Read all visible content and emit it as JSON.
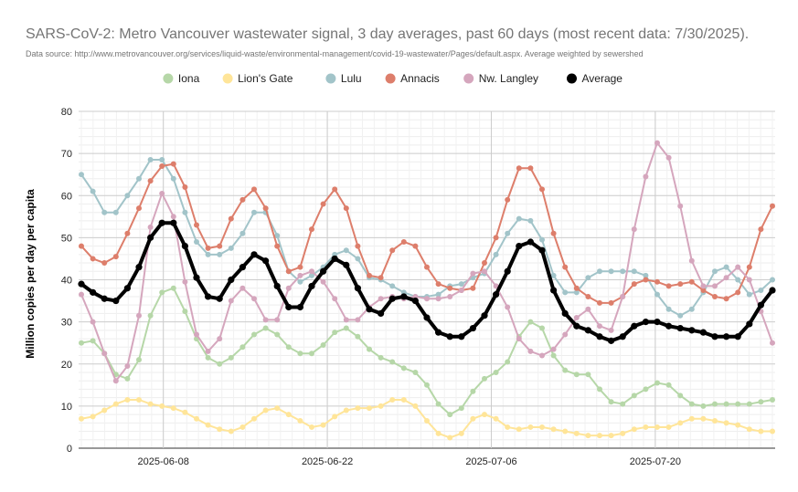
{
  "chart_data": {
    "type": "line",
    "title": "SARS-CoV-2: Metro Vancouver wastewater signal, 3 day averages, past 60 days (most recent data: 7/30/2025).",
    "subtitle": "Data source: http://www.metrovancouver.org/services/liquid-waste/environmental-management/covid-19-wastewater/Pages/default.aspx. Average weighted by sewershed",
    "ylabel": "Million copies per day per capita",
    "xlabel": "",
    "x_start": "2025-06-01",
    "x_end": "2025-07-30",
    "x_ticks": [
      "2025-06-08",
      "2025-06-22",
      "2025-07-06",
      "2025-07-20"
    ],
    "ylim": [
      0,
      80
    ],
    "y_ticks": [
      0,
      10,
      20,
      30,
      40,
      50,
      60,
      70,
      80
    ],
    "grid": true,
    "legend_position": "top",
    "series": [
      {
        "name": "Iona",
        "color": "#b6d7a8",
        "width": 2,
        "values": [
          25,
          25.5,
          22.5,
          17.5,
          16.5,
          21,
          31.5,
          37,
          38,
          32.5,
          26,
          21.5,
          20,
          21.5,
          24,
          27,
          28.5,
          27,
          24,
          22.5,
          22.5,
          24.5,
          27.5,
          28.5,
          26.5,
          23.5,
          21.5,
          20.5,
          19,
          18,
          15,
          10.5,
          8,
          9.5,
          13.5,
          16.5,
          18,
          20.5,
          26.5,
          30,
          28.5,
          22,
          18.5,
          17.5,
          17.5,
          14,
          11,
          10.5,
          12.5,
          14,
          15.5,
          15,
          12.5,
          10.5,
          10,
          10.5,
          10.5,
          10.5,
          10.5,
          11,
          11.5
        ]
      },
      {
        "name": "Lion's Gate",
        "color": "#ffe599",
        "width": 2,
        "values": [
          7,
          7.5,
          9,
          10.5,
          11.5,
          11.5,
          10.5,
          10,
          9.5,
          8.5,
          7,
          5.5,
          4.5,
          4,
          5,
          7,
          9,
          9.5,
          8,
          6.5,
          5,
          5.5,
          7.5,
          9,
          9.5,
          9.5,
          10,
          11.5,
          11.5,
          10,
          6.5,
          3.5,
          2.5,
          3.5,
          7,
          8,
          7,
          5,
          4.5,
          5,
          5,
          4.5,
          4,
          3.5,
          3,
          3,
          3,
          3.5,
          4.5,
          5,
          5,
          5,
          6,
          7,
          7,
          6.5,
          6,
          5.5,
          4.5,
          4,
          4
        ]
      },
      {
        "name": "Lulu",
        "color": "#a2c4c9",
        "width": 2,
        "values": [
          65,
          61,
          56,
          56,
          60,
          64,
          68.5,
          68.5,
          64,
          56,
          49,
          46,
          46,
          47.5,
          51,
          56,
          56,
          50.5,
          42,
          39.5,
          41,
          43,
          46,
          47,
          45,
          40.5,
          40,
          38.5,
          37,
          36,
          36,
          36.5,
          38.5,
          39,
          40.5,
          41.5,
          46,
          51,
          54.5,
          54,
          49.5,
          41,
          37,
          37,
          40.5,
          42,
          42,
          42,
          42,
          41,
          36.5,
          33,
          31.5,
          33,
          37,
          42,
          43,
          40,
          36.5,
          37.5,
          40
        ]
      },
      {
        "name": "Annacis",
        "color": "#dd7e6b",
        "width": 2,
        "values": [
          48,
          45,
          44,
          45.5,
          51,
          57,
          63.5,
          67,
          67.5,
          62,
          53,
          47.5,
          48,
          54.5,
          59,
          61.5,
          57,
          48,
          42,
          43,
          52,
          58,
          61.5,
          57,
          48,
          41,
          40.5,
          47,
          49,
          48,
          43,
          39,
          38,
          37.5,
          38,
          44,
          50,
          59,
          66.5,
          66.5,
          61.5,
          51,
          43,
          38,
          36,
          34.5,
          34.5,
          36,
          39,
          40,
          39.5,
          38.5,
          39,
          39.5,
          37.5,
          36,
          35.5,
          37,
          43,
          52,
          57.5
        ]
      },
      {
        "name": "Nw. Langley",
        "color": "#d5a6bd",
        "width": 2,
        "values": [
          36.5,
          30,
          22.5,
          16,
          19.5,
          31.5,
          52.5,
          60.5,
          55,
          39.5,
          27,
          23,
          26,
          35,
          38,
          35.5,
          30.5,
          30.5,
          38,
          41,
          42,
          39.5,
          35.5,
          30.5,
          30.5,
          33.5,
          35.5,
          36,
          35.5,
          36,
          35.5,
          35.5,
          36,
          37.5,
          41.5,
          42,
          38.5,
          33.5,
          26,
          23,
          22,
          23.5,
          27,
          31,
          33,
          29,
          28,
          36,
          52,
          64.5,
          72.5,
          69,
          57.5,
          44.5,
          38.5,
          38.5,
          40.5,
          43,
          40,
          32.5,
          25
        ]
      },
      {
        "name": "Average",
        "color": "#000000",
        "width": 4,
        "values": [
          39,
          37,
          35.5,
          35,
          38,
          43,
          50,
          53.5,
          53.5,
          48,
          40.5,
          36,
          35.5,
          40,
          43,
          46,
          44.5,
          38.5,
          33.5,
          33.5,
          38.5,
          42,
          45,
          43.5,
          38,
          33,
          32,
          35.5,
          36,
          35,
          31,
          27.5,
          26.5,
          26.5,
          28.5,
          31.5,
          36.5,
          42,
          48,
          49,
          47,
          37.5,
          32,
          29,
          28,
          26.5,
          25.5,
          26.5,
          29,
          30,
          30,
          29,
          28.5,
          28,
          27.5,
          26.5,
          26.5,
          26.5,
          29.5,
          34,
          37.5
        ]
      }
    ]
  }
}
